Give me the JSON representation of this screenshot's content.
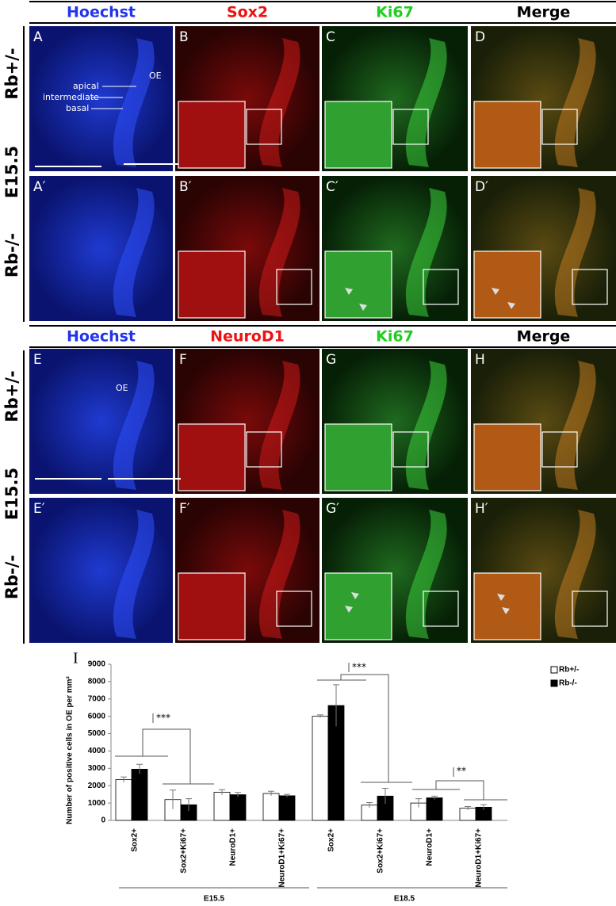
{
  "top": {
    "headers": [
      "Hoechst",
      "Sox2",
      "Ki67",
      "Merge"
    ],
    "stage": "E15.5",
    "rows": [
      {
        "genotype": "Rb+/-",
        "panels": [
          "A",
          "B",
          "C",
          "D"
        ]
      },
      {
        "genotype": "Rb-/-",
        "panels": [
          "A′",
          "B′",
          "C′",
          "D′"
        ]
      }
    ],
    "layers": [
      "apical",
      "intermediate",
      "basal"
    ],
    "region": "OE"
  },
  "bottom": {
    "headers": [
      "Hoechst",
      "NeuroD1",
      "Ki67",
      "Merge"
    ],
    "stage": "E15.5",
    "rows": [
      {
        "genotype": "Rb+/-",
        "panels": [
          "E",
          "F",
          "G",
          "H"
        ]
      },
      {
        "genotype": "Rb-/-",
        "panels": [
          "E′",
          "F′",
          "G′",
          "H′"
        ]
      }
    ],
    "region": "OE"
  },
  "chart_data": {
    "type": "bar",
    "panel": "I",
    "ylabel": "Number of positive cells in OE per mm²",
    "categories": [
      "Sox2+",
      "Sox2+Ki67+",
      "NeuroD1+",
      "NeuroD1+Ki67+",
      "Sox2+",
      "Sox2+Ki67+",
      "NeuroD1+",
      "NeuroD1+Ki67+"
    ],
    "groups": [
      "E15.5",
      "E18.5"
    ],
    "series": [
      {
        "name": "Rb+/-",
        "color": "#ffffff",
        "values": [
          2350,
          1200,
          1620,
          1550,
          6000,
          880,
          1000,
          700
        ],
        "errors": [
          150,
          550,
          150,
          130,
          80,
          150,
          250,
          100
        ]
      },
      {
        "name": "Rb-/-",
        "color": "#000000",
        "values": [
          2950,
          900,
          1480,
          1420,
          6620,
          1400,
          1300,
          760
        ],
        "errors": [
          280,
          350,
          130,
          80,
          1200,
          450,
          100,
          150
        ]
      }
    ],
    "significance": [
      "***",
      "***",
      "**"
    ],
    "ylim": [
      0,
      9000
    ],
    "yticks": [
      0,
      1000,
      2000,
      3000,
      4000,
      5000,
      6000,
      7000,
      8000,
      9000
    ]
  }
}
